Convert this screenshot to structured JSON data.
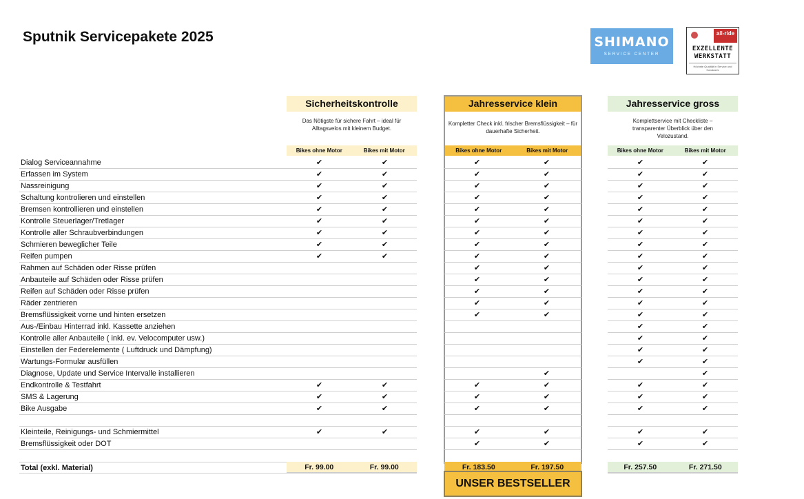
{
  "title": "Sputnik Servicepakete 2025",
  "logos": {
    "shimano": {
      "name": "SHIMANO",
      "sub": "SERVICE CENTER"
    },
    "allride": {
      "badge": "all-ride",
      "line1": "EXZELLENTE",
      "line2": "WERKSTATT",
      "fine": "Höchste Qualität in Service und Handwerk"
    }
  },
  "colors": {
    "sicherheit": "#fdf1cc",
    "klein": "#f5bf3f",
    "gross": "#e2efd9"
  },
  "packages": [
    {
      "name": "Sicherheitskontrolle",
      "desc": "Das Nötigste für sichere Fahrt – ideal für Alltagsvelos mit kleinem Budget.",
      "cols": [
        "Bikes ohne Motor",
        "Bikes mit Motor"
      ],
      "total": [
        "Fr. 99.00",
        "Fr. 99.00"
      ]
    },
    {
      "name": "Jahresservice klein",
      "desc": "Kompletter Check inkl. frischer Bremsflüssigkeit – für dauerhafte Sicherheit.",
      "cols": [
        "Bikes ohne Motor",
        "Bikes mit Motor"
      ],
      "total": [
        "Fr. 183.50",
        "Fr. 197.50"
      ]
    },
    {
      "name": "Jahresservice gross",
      "desc": "Komplettservice mit Checkliste – transparenter Überblick über den Velozustand.",
      "cols": [
        "Bikes ohne Motor",
        "Bikes mit Motor"
      ],
      "total": [
        "Fr. 257.50",
        "Fr. 271.50"
      ]
    }
  ],
  "check_symbol": "✔",
  "rows": [
    {
      "label": "Dialog Serviceannahme",
      "checks": [
        1,
        1,
        1,
        1,
        1,
        1
      ]
    },
    {
      "label": "Erfassen im System",
      "checks": [
        1,
        1,
        1,
        1,
        1,
        1
      ]
    },
    {
      "label": "Nassreinigung",
      "checks": [
        1,
        1,
        1,
        1,
        1,
        1
      ]
    },
    {
      "label": "Schaltung kontrolieren und einstellen",
      "checks": [
        1,
        1,
        1,
        1,
        1,
        1
      ]
    },
    {
      "label": "Bremsen kontrollieren und einstellen",
      "checks": [
        1,
        1,
        1,
        1,
        1,
        1
      ]
    },
    {
      "label": "Kontrolle Steuerlager/Tretlager",
      "checks": [
        1,
        1,
        1,
        1,
        1,
        1
      ]
    },
    {
      "label": "Kontrolle aller Schraubverbindungen",
      "checks": [
        1,
        1,
        1,
        1,
        1,
        1
      ]
    },
    {
      "label": "Schmieren beweglicher Teile",
      "checks": [
        1,
        1,
        1,
        1,
        1,
        1
      ]
    },
    {
      "label": "Reifen pumpen",
      "checks": [
        1,
        1,
        1,
        1,
        1,
        1
      ]
    },
    {
      "label": "Rahmen auf Schäden oder Risse prüfen",
      "checks": [
        0,
        0,
        1,
        1,
        1,
        1
      ]
    },
    {
      "label": "Anbauteile auf Schäden oder Risse prüfen",
      "checks": [
        0,
        0,
        1,
        1,
        1,
        1
      ]
    },
    {
      "label": "Reifen auf Schäden oder Risse prüfen",
      "checks": [
        0,
        0,
        1,
        1,
        1,
        1
      ]
    },
    {
      "label": "Räder zentrieren",
      "checks": [
        0,
        0,
        1,
        1,
        1,
        1
      ]
    },
    {
      "label": "Bremsflüssigkeit vorne und hinten ersetzen",
      "checks": [
        0,
        0,
        1,
        1,
        1,
        1
      ]
    },
    {
      "label": "Aus-/Einbau Hinterrad inkl. Kassette anziehen",
      "checks": [
        0,
        0,
        0,
        0,
        1,
        1
      ]
    },
    {
      "label": "Kontrolle aller Anbauteile ( inkl. ev. Velocomputer usw.)",
      "checks": [
        0,
        0,
        0,
        0,
        1,
        1
      ]
    },
    {
      "label": "Einstellen der Federelemente ( Luftdruck und Dämpfung)",
      "checks": [
        0,
        0,
        0,
        0,
        1,
        1
      ]
    },
    {
      "label": "Wartungs-Formular ausfüllen",
      "checks": [
        0,
        0,
        0,
        0,
        1,
        1
      ]
    },
    {
      "label": "Diagnose, Update und Service Intervalle installieren",
      "checks": [
        0,
        0,
        0,
        1,
        0,
        1
      ]
    },
    {
      "label": "Endkontrolle & Testfahrt",
      "checks": [
        1,
        1,
        1,
        1,
        1,
        1
      ]
    },
    {
      "label": "SMS & Lagerung",
      "checks": [
        1,
        1,
        1,
        1,
        1,
        1
      ]
    },
    {
      "label": "Bike Ausgabe",
      "checks": [
        1,
        1,
        1,
        1,
        1,
        1
      ]
    },
    {
      "label": "",
      "checks": [
        0,
        0,
        0,
        0,
        0,
        0
      ]
    },
    {
      "label": "Kleinteile, Reinigungs- und Schmiermittel",
      "checks": [
        1,
        1,
        1,
        1,
        1,
        1
      ]
    },
    {
      "label": "Bremsflüssigkeit oder DOT",
      "checks": [
        0,
        0,
        1,
        1,
        1,
        1
      ]
    }
  ],
  "total_label": "Total (exkl. Material)",
  "bestseller": "UNSER BESTSELLER"
}
